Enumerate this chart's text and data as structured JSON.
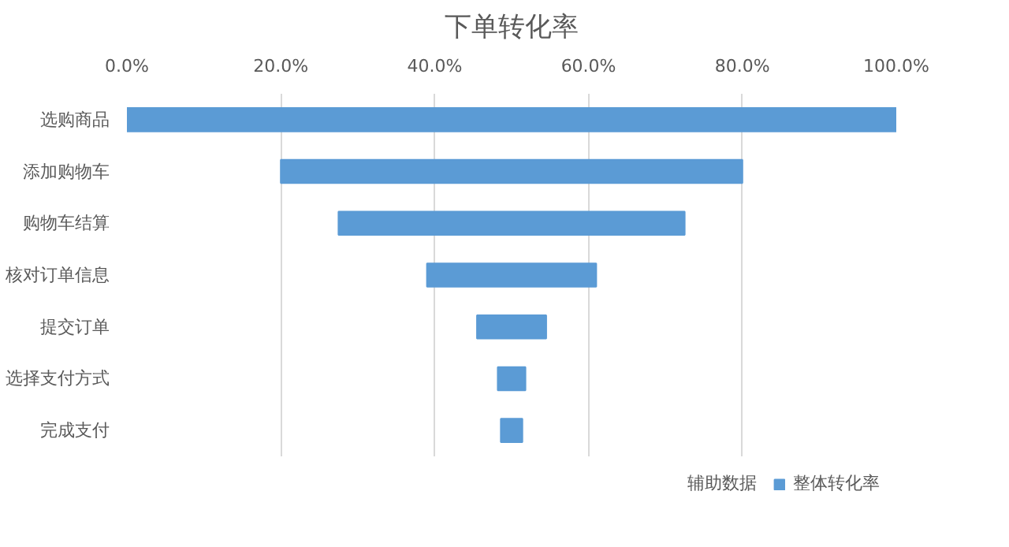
{
  "chart_data": {
    "type": "bar",
    "orientation": "horizontal",
    "title": "下单转化率",
    "categories": [
      "选购商品",
      "添加购物车",
      "购物车结算",
      "核对订单信息",
      "提交订单",
      "选择支付方式",
      "完成支付"
    ],
    "series": [
      {
        "name": "整体转化率",
        "color": "#5b9bd5",
        "values": [
          100,
          60,
          45,
          22,
          9,
          3.6,
          2.8
        ],
        "base": [
          0,
          20,
          27.5,
          39,
          45.5,
          48.2,
          48.6
        ]
      }
    ],
    "xlim": [
      0,
      100
    ],
    "xticks": [
      {
        "value": 0,
        "label": "0.0%"
      },
      {
        "value": 20,
        "label": "20.0%"
      },
      {
        "value": 40,
        "label": "40.0%"
      },
      {
        "value": 60,
        "label": "60.0%"
      },
      {
        "value": 80,
        "label": "80.0%"
      },
      {
        "value": 100,
        "label": "100.0%"
      }
    ],
    "grid": "x",
    "legend": "bottom",
    "annotations": [
      "辅助数据"
    ]
  }
}
